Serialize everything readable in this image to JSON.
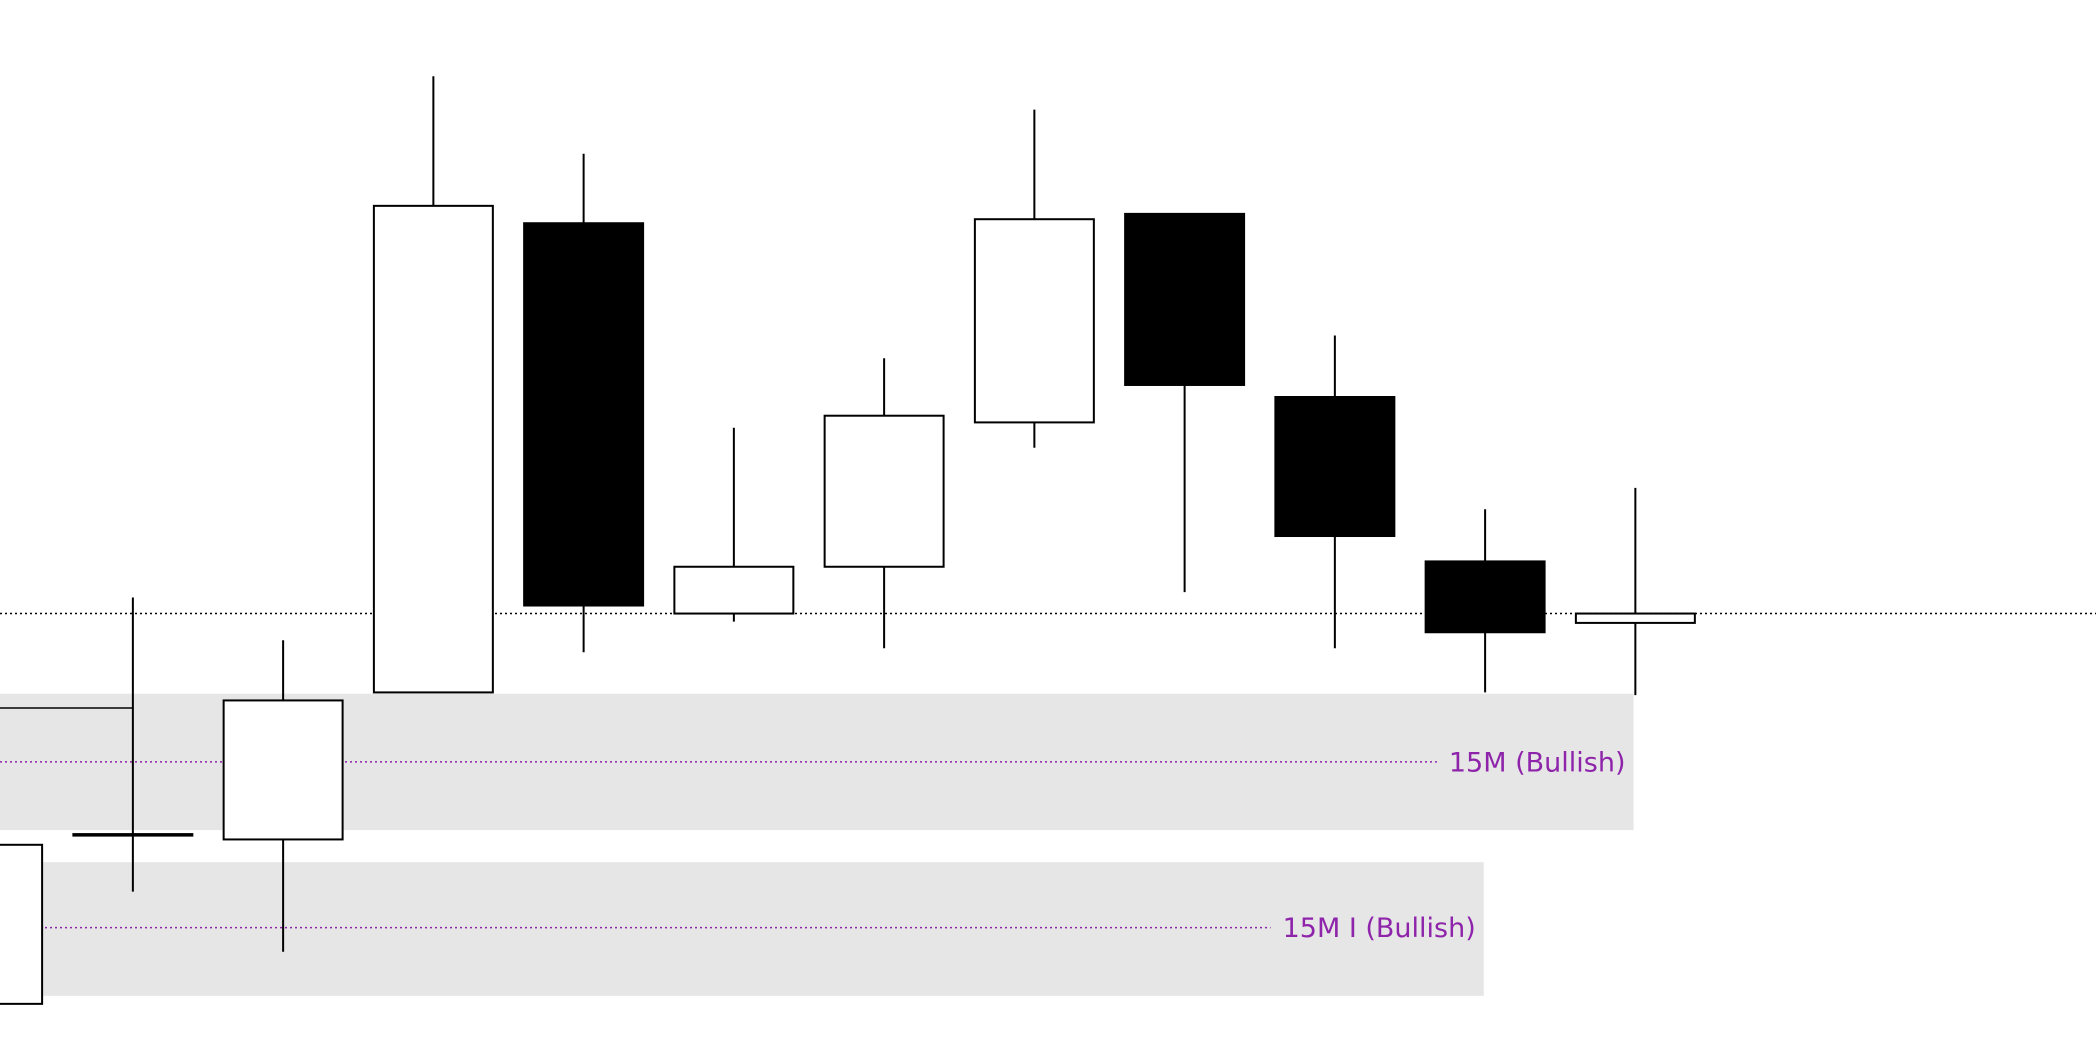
{
  "chart_data": {
    "type": "candlestick",
    "ylim": [
      7,
      800
    ],
    "candles": [
      {
        "open": 49,
        "high": 168,
        "low": 49,
        "close": 168
      },
      {
        "open": 175,
        "high": 353,
        "low": 133,
        "close": 176
      },
      {
        "open": 172,
        "high": 321,
        "low": 88,
        "close": 276
      },
      {
        "open": 282,
        "high": 743,
        "low": 282,
        "close": 646
      },
      {
        "open": 633,
        "high": 685,
        "low": 312,
        "close": 347
      },
      {
        "open": 341,
        "high": 480,
        "low": 335,
        "close": 376
      },
      {
        "open": 376,
        "high": 532,
        "low": 315,
        "close": 489
      },
      {
        "open": 484,
        "high": 718,
        "low": 465,
        "close": 636
      },
      {
        "open": 640,
        "high": 640,
        "low": 357,
        "close": 512
      },
      {
        "open": 503,
        "high": 549,
        "low": 315,
        "close": 399
      },
      {
        "open": 380,
        "high": 419,
        "low": 282,
        "close": 327
      },
      {
        "open": 334,
        "high": 435,
        "low": 280,
        "close": 341
      }
    ],
    "price_line": 341,
    "zones": [
      {
        "label": "15M (Bullish)",
        "top": 281,
        "bottom": 179,
        "mid": 230,
        "color": "#8e24aa",
        "fill": "#e6e6e6"
      },
      {
        "label": "15M I (Bullish)",
        "top": 155,
        "bottom": 55,
        "mid": 106,
        "color": "#8e24aa",
        "fill": "#e6e6e6"
      }
    ]
  }
}
